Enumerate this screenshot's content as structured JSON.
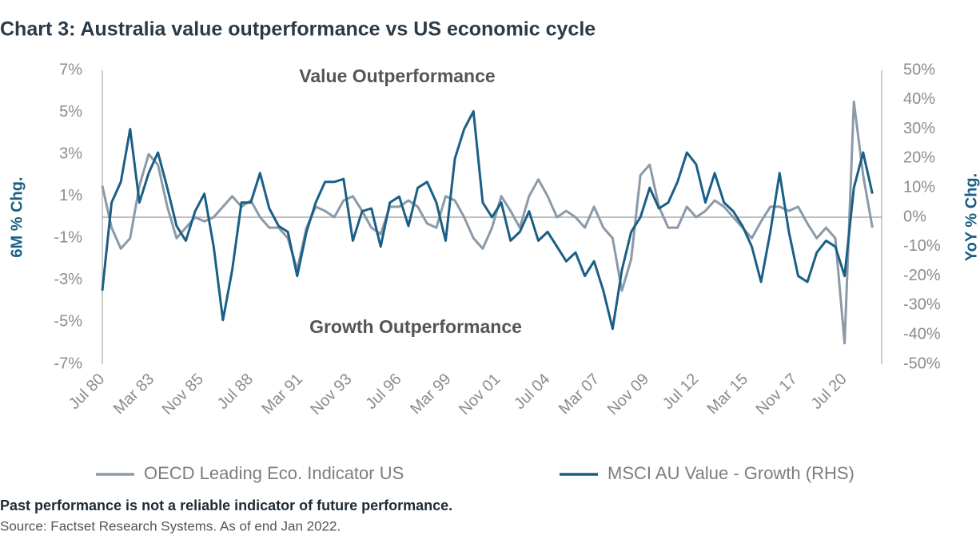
{
  "chart_data": {
    "type": "line",
    "title": "Chart 3: Australia value outperformance vs US economic cycle",
    "annotations": [
      "Value Outperformance",
      "Growth Outperformance"
    ],
    "ylabel": "6M % Chg.",
    "y2label": "YoY % Chg.",
    "notes": [
      "Past performance is not a reliable indicator of future performance.",
      "Source: Factset Research Systems. As of end Jan 2022."
    ],
    "x": [
      1980.5,
      1981.0,
      1981.5,
      1982.0,
      1982.5,
      1983.0,
      1983.5,
      1984.0,
      1984.5,
      1985.0,
      1985.5,
      1986.0,
      1986.5,
      1987.0,
      1987.5,
      1988.0,
      1988.5,
      1989.0,
      1989.5,
      1990.0,
      1990.5,
      1991.0,
      1991.5,
      1992.0,
      1992.5,
      1993.0,
      1993.5,
      1994.0,
      1994.5,
      1995.0,
      1995.5,
      1996.0,
      1996.5,
      1997.0,
      1997.5,
      1998.0,
      1998.5,
      1999.0,
      1999.5,
      2000.0,
      2000.5,
      2001.0,
      2001.5,
      2002.0,
      2002.5,
      2003.0,
      2003.5,
      2004.0,
      2004.5,
      2005.0,
      2005.5,
      2006.0,
      2006.5,
      2007.0,
      2007.5,
      2008.0,
      2008.5,
      2009.0,
      2009.5,
      2010.0,
      2010.5,
      2011.0,
      2011.5,
      2012.0,
      2012.5,
      2013.0,
      2013.5,
      2014.0,
      2014.5,
      2015.0,
      2015.5,
      2016.0,
      2016.5,
      2017.0,
      2017.5,
      2018.0,
      2018.5,
      2019.0,
      2019.5,
      2020.0,
      2020.5,
      2021.0,
      2021.5,
      2022.0
    ],
    "xlim": [
      1980.5,
      2022.5
    ],
    "xticks": [
      {
        "value": 1980.5,
        "label": "Jul 80"
      },
      {
        "value": 1983.17,
        "label": "Mar 83"
      },
      {
        "value": 1985.83,
        "label": "Nov 85"
      },
      {
        "value": 1988.5,
        "label": "Jul 88"
      },
      {
        "value": 1991.17,
        "label": "Mar 91"
      },
      {
        "value": 1993.83,
        "label": "Nov 93"
      },
      {
        "value": 1996.5,
        "label": "Jul 96"
      },
      {
        "value": 1999.17,
        "label": "Mar 99"
      },
      {
        "value": 2001.83,
        "label": "Nov 01"
      },
      {
        "value": 2004.5,
        "label": "Jul 04"
      },
      {
        "value": 2007.17,
        "label": "Mar 07"
      },
      {
        "value": 2009.83,
        "label": "Nov 09"
      },
      {
        "value": 2012.5,
        "label": "Jul 12"
      },
      {
        "value": 2015.17,
        "label": "Mar 15"
      },
      {
        "value": 2017.83,
        "label": "Nov 17"
      },
      {
        "value": 2020.5,
        "label": "Jul 20"
      }
    ],
    "ylim": [
      -7,
      7
    ],
    "yticks": [
      {
        "value": 7,
        "label": "7%"
      },
      {
        "value": 5,
        "label": "5%"
      },
      {
        "value": 3,
        "label": "3%"
      },
      {
        "value": 1,
        "label": "1%"
      },
      {
        "value": -1,
        "label": "-1%"
      },
      {
        "value": -3,
        "label": "-3%"
      },
      {
        "value": -5,
        "label": "-5%"
      },
      {
        "value": -7,
        "label": "-7%"
      }
    ],
    "y2lim": [
      -50,
      50
    ],
    "y2ticks": [
      {
        "value": 50,
        "label": "50%"
      },
      {
        "value": 40,
        "label": "40%"
      },
      {
        "value": 30,
        "label": "30%"
      },
      {
        "value": 20,
        "label": "20%"
      },
      {
        "value": 10,
        "label": "10%"
      },
      {
        "value": 0,
        "label": "0%"
      },
      {
        "value": -10,
        "label": "-10%"
      },
      {
        "value": -20,
        "label": "-20%"
      },
      {
        "value": -30,
        "label": "-30%"
      },
      {
        "value": -40,
        "label": "-40%"
      },
      {
        "value": -50,
        "label": "-50%"
      }
    ],
    "series": [
      {
        "name": "OECD Leading Eco. Indicator US",
        "color": "#8a9aa8",
        "axis": "y",
        "values": [
          1.5,
          -0.5,
          -1.5,
          -1,
          1.5,
          3,
          2.5,
          0.5,
          -1,
          -0.5,
          0,
          -0.2,
          0,
          0.5,
          1,
          0.5,
          0.8,
          0,
          -0.5,
          -0.5,
          -1,
          -2.5,
          -0.5,
          0.5,
          0.3,
          0,
          0.8,
          1,
          0.3,
          -0.5,
          -0.8,
          0.5,
          0.5,
          0.8,
          0.5,
          -0.3,
          -0.5,
          1,
          0.8,
          0,
          -1,
          -1.5,
          -0.5,
          1,
          0.3,
          -0.5,
          1,
          1.8,
          1,
          0,
          0.3,
          0,
          -0.5,
          0.5,
          -0.5,
          -1,
          -3.5,
          -2,
          2,
          2.5,
          0.5,
          -0.5,
          -0.5,
          0.5,
          0,
          0.3,
          0.8,
          0.5,
          0,
          -0.5,
          -1,
          -0.2,
          0.5,
          0.5,
          0.3,
          0.5,
          -0.3,
          -1,
          -0.5,
          -1,
          -6,
          5.5,
          2,
          -0.5
        ]
      },
      {
        "name": "MSCI AU Value - Growth (RHS)",
        "color": "#1a5f86",
        "axis": "y2",
        "values": [
          -25,
          5,
          12,
          30,
          5,
          15,
          22,
          10,
          -3,
          -8,
          2,
          8,
          -10,
          -35,
          -18,
          5,
          5,
          15,
          3,
          -3,
          -5,
          -20,
          -5,
          5,
          12,
          12,
          13,
          -8,
          2,
          3,
          -10,
          5,
          7,
          -3,
          10,
          12,
          5,
          -8,
          20,
          30,
          36,
          5,
          0,
          5,
          -8,
          -5,
          2,
          -8,
          -5,
          -10,
          -15,
          -12,
          -20,
          -15,
          -25,
          -38,
          -18,
          -5,
          0,
          10,
          3,
          5,
          12,
          22,
          18,
          5,
          15,
          5,
          2,
          -3,
          -10,
          -22,
          -5,
          15,
          -5,
          -20,
          -22,
          -12,
          -8,
          -10,
          -20,
          10,
          22,
          8
        ]
      }
    ]
  }
}
